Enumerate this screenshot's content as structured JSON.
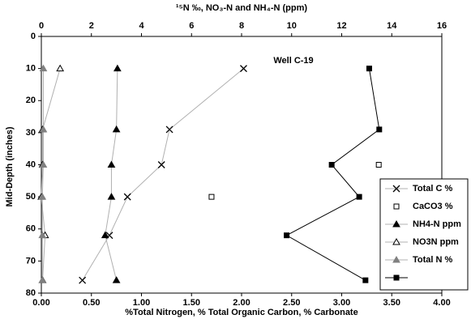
{
  "chart_data": {
    "type": "line",
    "title_top_axis": "¹⁵N ‰, NO₃-N and NH₄-N (ppm)",
    "x_label": "%Total Nitrogen, % Total Organic Carbon, % Carbonate",
    "y_label": "Mid-Depth (inches)",
    "annotation": "Well C-19",
    "xlim": [
      0,
      4
    ],
    "xticks": [
      {
        "value": 0,
        "label": "0.00"
      },
      {
        "value": 0.5,
        "label": "0.50"
      },
      {
        "value": 1,
        "label": "1.00"
      },
      {
        "value": 1.5,
        "label": "1.50"
      },
      {
        "value": 2,
        "label": "2.00"
      },
      {
        "value": 2.5,
        "label": "2.50"
      },
      {
        "value": 3,
        "label": "3.00"
      },
      {
        "value": 3.5,
        "label": "3.50"
      },
      {
        "value": 4,
        "label": "4.00"
      }
    ],
    "x2lim": [
      0,
      16
    ],
    "x2ticks": [
      0,
      2,
      4,
      6,
      8,
      10,
      12,
      14,
      16
    ],
    "ylim": [
      0,
      80
    ],
    "yticks": [
      0,
      10,
      20,
      30,
      40,
      50,
      60,
      70,
      80
    ],
    "y_reversed": true,
    "legend": "lower right",
    "series": [
      {
        "name": "Total C %",
        "color": "#000000",
        "line_color": "#b0b0b0",
        "marker": "x",
        "line": true,
        "x": [
          2.02,
          1.28,
          1.2,
          0.86,
          0.68,
          0.41
        ],
        "y": [
          10,
          29,
          40,
          50,
          62,
          76
        ]
      },
      {
        "name": "CaCO3 %",
        "color": "#000000",
        "marker": "square-open",
        "line": false,
        "x": [
          3.37,
          1.7
        ],
        "y": [
          40,
          50
        ]
      },
      {
        "name": "NH4-N ppm",
        "color": "#000000",
        "line_color": "#b0b0b0",
        "marker": "triangle",
        "line": true,
        "axis": "x2",
        "x": [
          3.04,
          3.0,
          2.8,
          2.8,
          2.55,
          3.0
        ],
        "y": [
          10,
          29,
          40,
          50,
          62,
          76
        ]
      },
      {
        "name": "NO3N ppm",
        "color": "#000000",
        "line_color": "#b0b0b0",
        "marker": "triangle-open",
        "line": true,
        "axis": "x2",
        "x": [
          0.75,
          0.05,
          0.05,
          0.0,
          0.15,
          0.05
        ],
        "y": [
          10,
          29,
          40,
          50,
          62,
          76
        ]
      },
      {
        "name": "Total N %",
        "color": "#808080",
        "line_color": "#b0b0b0",
        "marker": "triangle",
        "line": true,
        "x": [
          0.02,
          0.02,
          0.02,
          0.01,
          0.01,
          0.01
        ],
        "y": [
          10,
          29,
          40,
          50,
          62,
          76
        ]
      },
      {
        "color": "#000000",
        "line_color": "#000000",
        "marker": "square",
        "line": true,
        "axis": "x2",
        "x": [
          13.1,
          13.5,
          11.6,
          12.7,
          9.8,
          12.95
        ],
        "y": [
          10,
          29,
          40,
          50,
          62,
          76
        ]
      }
    ]
  }
}
